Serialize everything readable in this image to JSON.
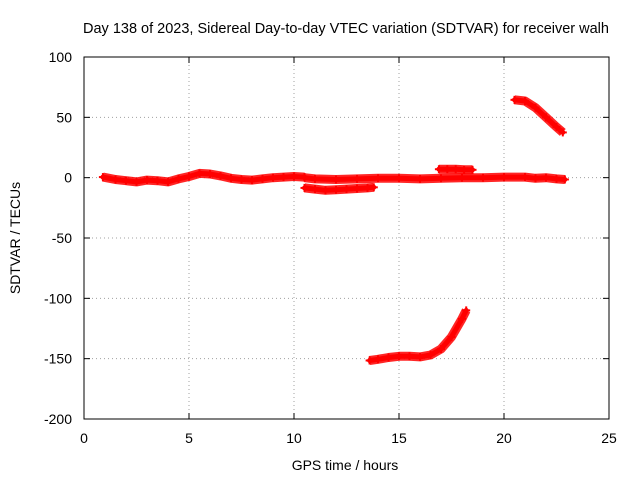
{
  "chart_data": {
    "type": "line",
    "title": "Day 138 of 2023, Sidereal Day-to-day VTEC variation (SDTVAR) for receiver walh",
    "xlabel": "GPS time / hours",
    "ylabel": "SDTVAR / TECUs",
    "xlim": [
      0,
      25
    ],
    "ylim": [
      -200,
      100
    ],
    "xticks": [
      0,
      5,
      10,
      15,
      20,
      25
    ],
    "yticks": [
      -200,
      -150,
      -100,
      -50,
      0,
      50,
      100
    ],
    "xtick_labels": [
      "0",
      "5",
      "10",
      "15",
      "20",
      "25"
    ],
    "ytick_labels": [
      "-200",
      "-150",
      "-100",
      "-50",
      "0",
      "50",
      "100"
    ],
    "grid": true,
    "legend": "none",
    "series_color": "#ff0000",
    "series": [
      {
        "name": "arc-1",
        "x": [
          0.9,
          1.5,
          2.0,
          2.5,
          3.0,
          3.5,
          4.0,
          4.5,
          5.0,
          5.5,
          6.0,
          6.5,
          7.0,
          7.5,
          8.0,
          8.5,
          9.0,
          9.5,
          10.0,
          10.5
        ],
        "y": [
          0.5,
          -1.5,
          -2.5,
          -3.5,
          -2.0,
          -2.5,
          -3.5,
          -1.0,
          1.0,
          3.5,
          3.0,
          1.5,
          -0.5,
          -1.5,
          -2.0,
          -1.0,
          0.0,
          0.5,
          1.0,
          0.5
        ]
      },
      {
        "name": "arc-2",
        "x": [
          10.5,
          11.0,
          11.5,
          12.0,
          12.5,
          13.0,
          13.5,
          13.8
        ],
        "y": [
          -8.5,
          -9.5,
          -10.5,
          -10.0,
          -9.5,
          -9.0,
          -8.5,
          -8.0
        ]
      },
      {
        "name": "arc-3",
        "x": [
          10.5,
          11.0,
          12.0,
          13.0,
          14.0,
          15.0,
          16.0,
          17.0,
          18.0,
          19.0,
          20.0,
          21.0,
          21.5,
          22.0,
          22.5,
          22.9
        ],
        "y": [
          0.0,
          -1.0,
          -1.5,
          -1.0,
          -0.5,
          -0.5,
          -1.0,
          -0.5,
          0.0,
          0.0,
          0.5,
          0.5,
          -0.5,
          0.0,
          -1.0,
          -1.5
        ]
      },
      {
        "name": "arc-4",
        "x": [
          16.9,
          17.3,
          17.7,
          18.1,
          18.5
        ],
        "y": [
          7.0,
          7.0,
          7.0,
          6.5,
          6.5
        ]
      },
      {
        "name": "arc-5",
        "x": [
          20.5,
          21.0,
          21.5,
          22.0,
          22.5,
          22.8
        ],
        "y": [
          64.5,
          63.5,
          58.0,
          50.0,
          42.0,
          37.5
        ]
      },
      {
        "name": "arc-6",
        "x": [
          13.6,
          14.0,
          14.5,
          15.0,
          15.5,
          16.0,
          16.5,
          17.0,
          17.5,
          18.0,
          18.2
        ],
        "y": [
          -151.5,
          -150.5,
          -149.0,
          -148.0,
          -148.0,
          -148.5,
          -147.0,
          -142.0,
          -132.0,
          -117.0,
          -110.0
        ]
      }
    ]
  }
}
